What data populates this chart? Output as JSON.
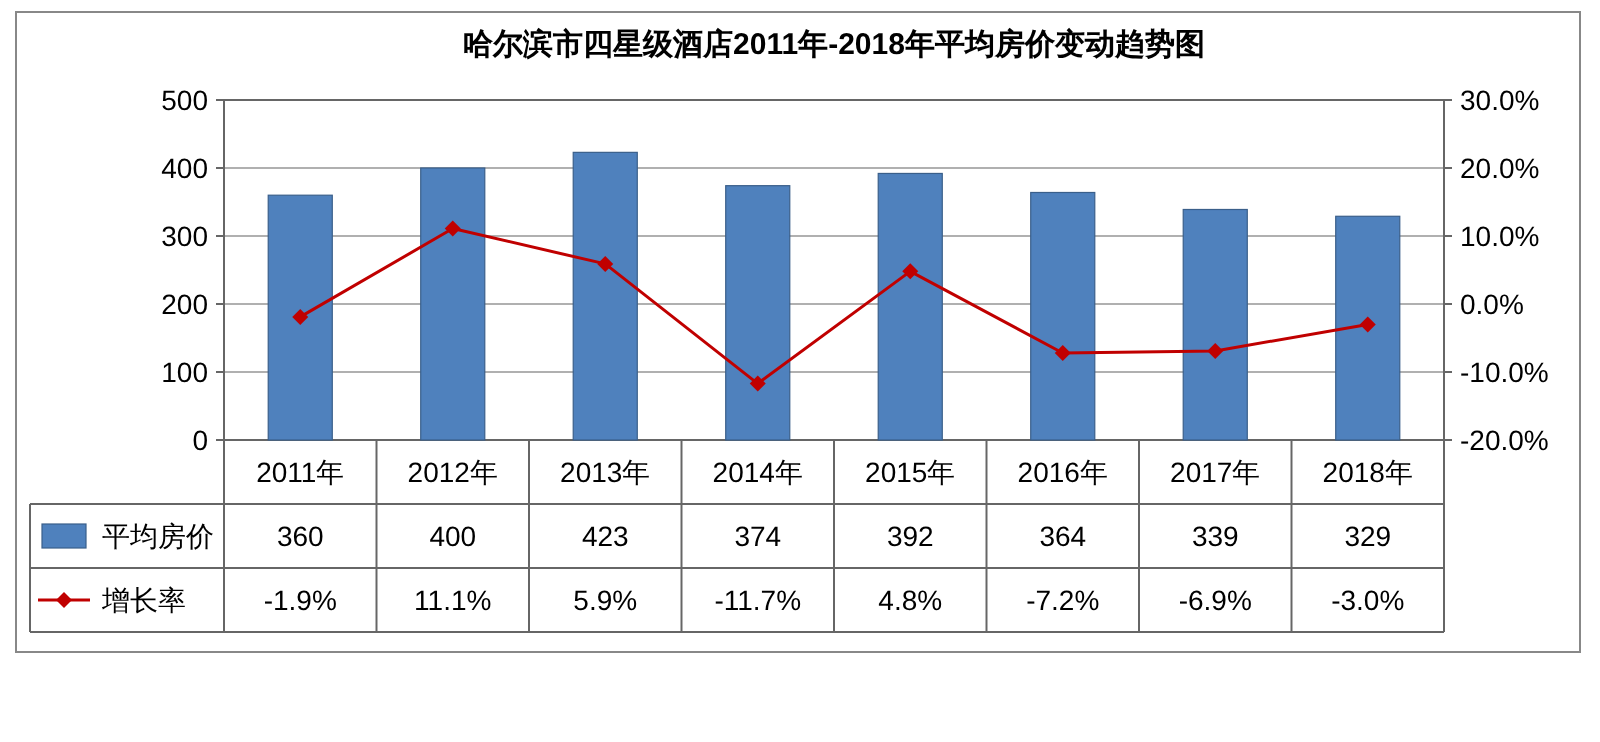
{
  "chart_data": {
    "type": "bar",
    "title": "哈尔滨市四星级酒店2011年-2018年平均房价变动趋势图",
    "categories": [
      "2011年",
      "2012年",
      "2013年",
      "2014年",
      "2015年",
      "2016年",
      "2017年",
      "2018年"
    ],
    "series": [
      {
        "name": "平均房价",
        "color": "#4f81bd",
        "values": [
          360,
          400,
          423,
          374,
          392,
          364,
          339,
          329
        ],
        "value_labels": [
          "360",
          "400",
          "423",
          "374",
          "392",
          "364",
          "339",
          "329"
        ]
      },
      {
        "name": "增长率",
        "type": "line",
        "axis": "y2",
        "color": "#c00000",
        "marker": "diamond",
        "values": [
          -1.9,
          11.1,
          5.9,
          -11.7,
          4.8,
          -7.2,
          -6.9,
          -3.0
        ],
        "value_labels": [
          "-1.9%",
          "11.1%",
          "5.9%",
          "-11.7%",
          "4.8%",
          "-7.2%",
          "-6.9%",
          "-3.0%"
        ]
      }
    ],
    "ylim": [
      0,
      500
    ],
    "yticks": [
      0,
      100,
      200,
      300,
      400,
      500
    ],
    "y2lim": [
      -20,
      30
    ],
    "y2ticks": [
      {
        "value": -20,
        "label": "-20.0%"
      },
      {
        "value": -10,
        "label": "-10.0%"
      },
      {
        "value": 0,
        "label": "0.0%"
      },
      {
        "value": 10,
        "label": "10.0%"
      },
      {
        "value": 20,
        "label": "20.0%"
      },
      {
        "value": 30,
        "label": "30.0%"
      }
    ],
    "grid": "y",
    "legend": "bottom"
  }
}
